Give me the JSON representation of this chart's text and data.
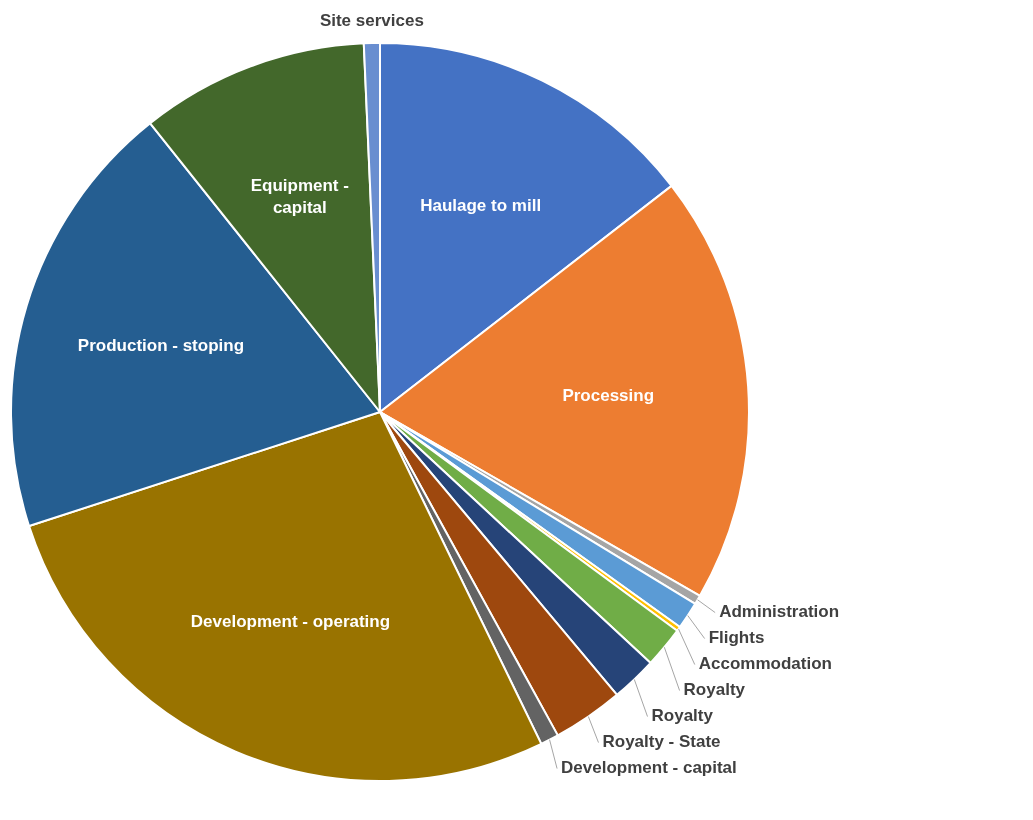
{
  "chart_data": {
    "type": "pie",
    "categories": [
      "Haulage to mill",
      "Processing",
      "Administration",
      "Flights",
      "Accommodation",
      "Royalty",
      "Royalty",
      "Royalty - State",
      "Development - capital",
      "Development - operating",
      "Production - stoping",
      "Equipment - capital",
      "Site services"
    ],
    "values": [
      14.5,
      18.8,
      0.4,
      1.2,
      0.2,
      1.8,
      2.0,
      3.1,
      0.8,
      27.2,
      19.3,
      10.0,
      0.7
    ],
    "colors": [
      "#4472c4",
      "#ed7d31",
      "#a5a5a5",
      "#5b9bd5",
      "#ffc000",
      "#70ad47",
      "#264478",
      "#9e480e",
      "#636363",
      "#997300",
      "#255e91",
      "#43682b",
      "#698ed0"
    ],
    "legend": false
  }
}
